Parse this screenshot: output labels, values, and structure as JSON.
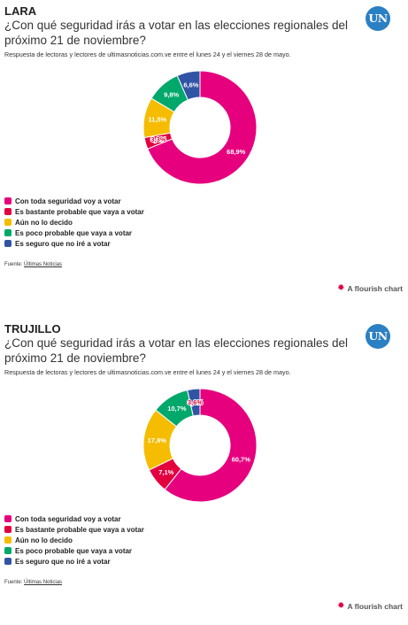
{
  "charts": [
    {
      "region": "LARA",
      "title": "¿Con qué seguridad irás a votar en las elecciones regionales del próximo 21 de noviembre?",
      "subtitle": "Respuesta de lectoras y lectores de ultimasnoticias.com.ve entre el lunes 24 y el viernes 28 de mayo.",
      "logo_text": "UN",
      "source_label": "Fuente:",
      "source_link": "Últimas Noticias",
      "flourish_label": "A flourish chart"
    },
    {
      "region": "TRUJILLO",
      "title": "¿Con qué seguridad irás a votar en las elecciones regionales del próximo 21 de noviembre?",
      "subtitle": "Respuesta de lectoras y lectores de ultimasnoticias.com.ve entre el lunes 24 y el viernes 28 de mayo.",
      "logo_text": "UN",
      "source_label": "Fuente:",
      "source_link": "Últimas Noticias",
      "flourish_label": "A flourish chart"
    }
  ],
  "chart_data": [
    {
      "type": "pie",
      "title": "¿Con qué seguridad irás a votar en las elecciones regionales del próximo 21 de noviembre?",
      "categories": [
        "Con toda seguridad voy a votar",
        "Es bastante probable que vaya a votar",
        "Aún no lo decido",
        "Es poco probable que vaya a votar",
        "Es seguro que no iré a votar"
      ],
      "values": [
        68.9,
        3.3,
        11.5,
        9.8,
        6.6
      ],
      "labels": [
        "68,9%",
        "3,3%",
        "11,5%",
        "9,8%",
        "6,6%"
      ],
      "colors": [
        "#e6007e",
        "#e2003e",
        "#f5bc00",
        "#00a86b",
        "#3155a4"
      ],
      "donut": true,
      "legend_position": "bottom-left"
    },
    {
      "type": "pie",
      "title": "¿Con qué seguridad irás a votar en las elecciones regionales del próximo 21 de noviembre?",
      "categories": [
        "Con toda seguridad voy a votar",
        "Es bastante probable que vaya a votar",
        "Aún no lo decido",
        "Es poco probable que vaya a votar",
        "Es seguro que no iré a votar"
      ],
      "values": [
        60.7,
        7.1,
        17.9,
        10.7,
        3.6
      ],
      "labels": [
        "60,7%",
        "7,1%",
        "17,9%",
        "10,7%",
        "3,6%"
      ],
      "colors": [
        "#e6007e",
        "#e2003e",
        "#f5bc00",
        "#00a86b",
        "#3155a4"
      ],
      "donut": true,
      "legend_position": "bottom-left"
    }
  ]
}
